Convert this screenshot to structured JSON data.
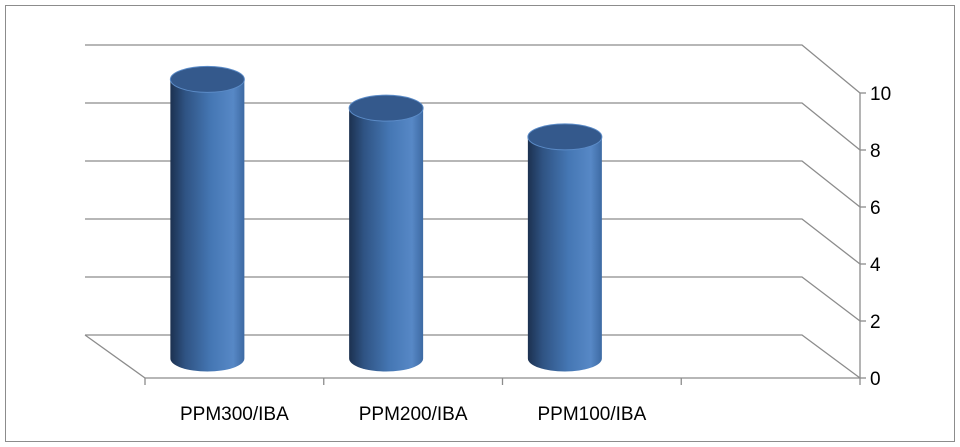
{
  "chart_data": {
    "type": "bar",
    "style": "3d-cylinder",
    "categories": [
      "PPM300/IBA",
      "PPM200/IBA",
      "PPM100/IBA",
      ""
    ],
    "values": [
      9.5,
      8.5,
      7.5,
      null
    ],
    "ylim": [
      0,
      10
    ],
    "yticks": [
      0,
      2,
      4,
      6,
      8,
      10
    ],
    "ytick_labels": [
      "0",
      "2",
      "4",
      "6",
      "8",
      "10"
    ],
    "y_axis_side": "right",
    "grid": true,
    "legend": "none",
    "bar_color": "#4f81bd"
  }
}
